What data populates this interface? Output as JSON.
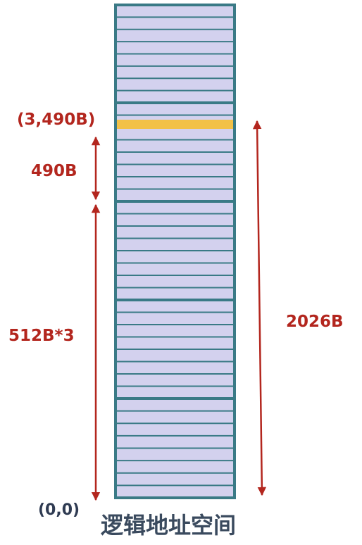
{
  "diagram": {
    "labels": {
      "offset_point": "(3,490B)",
      "offset_len": "490B",
      "pages_len": "512B*3",
      "total_len": "2026B",
      "origin": "(0,0)",
      "caption": "逻辑地址空间"
    },
    "colors": {
      "label_red": "#b3261e",
      "arrow_red": "#b3261e",
      "border": "#3a7a86",
      "cell_fill": "#d3d1ee",
      "cell_line": "#3a7a86",
      "highlight": "#f2c147",
      "origin_text": "#2f3b52",
      "caption_text": "#3a4a5e"
    }
  }
}
